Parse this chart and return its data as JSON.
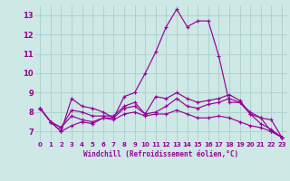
{
  "title": "",
  "xlabel": "Windchill (Refroidissement éolien,°C)",
  "bg_color": "#cde8e5",
  "grid_color": "#aacece",
  "line_color": "#990099",
  "xlim": [
    -0.5,
    23.5
  ],
  "ylim": [
    6.5,
    13.5
  ],
  "xticks": [
    0,
    1,
    2,
    3,
    4,
    5,
    6,
    7,
    8,
    9,
    10,
    11,
    12,
    13,
    14,
    15,
    16,
    17,
    18,
    19,
    20,
    21,
    22,
    23
  ],
  "yticks": [
    7,
    8,
    9,
    10,
    11,
    12,
    13
  ],
  "series": [
    [
      8.2,
      7.5,
      7.0,
      8.7,
      8.3,
      8.2,
      8.0,
      7.7,
      8.8,
      9.0,
      10.0,
      11.1,
      12.4,
      13.3,
      12.4,
      12.7,
      12.7,
      10.9,
      8.5,
      8.5,
      8.0,
      7.7,
      7.0,
      6.7
    ],
    [
      8.2,
      7.5,
      7.2,
      8.1,
      8.0,
      7.8,
      7.8,
      7.8,
      8.3,
      8.5,
      7.9,
      8.8,
      8.7,
      9.0,
      8.7,
      8.5,
      8.6,
      8.7,
      8.9,
      8.6,
      7.9,
      7.7,
      7.6,
      6.7
    ],
    [
      8.2,
      7.5,
      7.2,
      7.8,
      7.6,
      7.5,
      7.7,
      7.7,
      8.2,
      8.3,
      7.9,
      8.0,
      8.3,
      8.7,
      8.3,
      8.2,
      8.4,
      8.5,
      8.7,
      8.5,
      7.9,
      7.4,
      7.1,
      6.7
    ],
    [
      8.2,
      7.5,
      7.0,
      7.3,
      7.5,
      7.4,
      7.7,
      7.6,
      7.9,
      8.0,
      7.8,
      7.9,
      7.9,
      8.1,
      7.9,
      7.7,
      7.7,
      7.8,
      7.7,
      7.5,
      7.3,
      7.2,
      7.0,
      6.7
    ]
  ]
}
